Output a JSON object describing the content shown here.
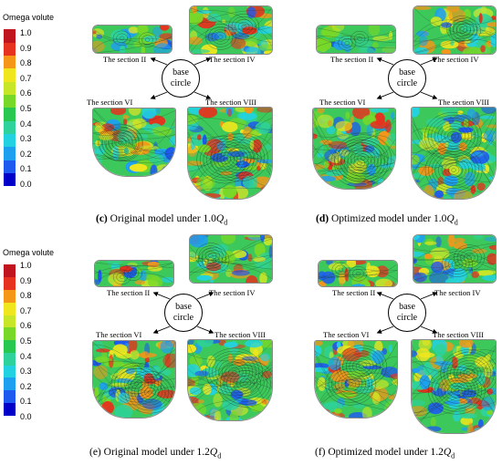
{
  "colorbar": {
    "title": "Omega volute",
    "ticks": [
      "1.0",
      "0.9",
      "0.8",
      "0.7",
      "0.6",
      "0.5",
      "0.4",
      "0.3",
      "0.2",
      "0.1",
      "0.0"
    ],
    "colors": [
      "#0000c8",
      "#1e5af0",
      "#1ea0f0",
      "#22d2e0",
      "#2ed29a",
      "#28c850",
      "#78d828",
      "#c8e628",
      "#f0e61e",
      "#f59619",
      "#e6321e",
      "#c0141e"
    ]
  },
  "section_labels": {
    "ii": "The section II",
    "iv": "The section IV",
    "vi": "The section VI",
    "viii": "The section VIII"
  },
  "circle": {
    "line1": "base",
    "line2": "circle"
  },
  "captions": {
    "c": {
      "letter": "(c)",
      "text": "Original model under 1.0",
      "sym": "Q",
      "sub": "d"
    },
    "d": {
      "letter": "(d)",
      "text": "Optimized model under 1.0",
      "sym": "Q",
      "sub": "d"
    },
    "e": {
      "letter": "(e)",
      "text": "Original model under 1.2",
      "sym": "Q",
      "sub": "d"
    },
    "f": {
      "letter": "(f)",
      "text": "Optimized model under 1.2",
      "sym": "Q",
      "sub": "d"
    }
  }
}
